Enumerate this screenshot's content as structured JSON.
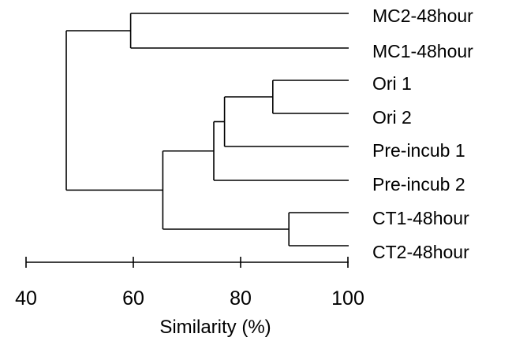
{
  "dendrogram": {
    "leaves": [
      "MC2-48hour",
      "MC1-48hour",
      "Ori 1",
      "Ori 2",
      "Pre-incub 1",
      "Pre-incub 2",
      "CT1-48hour",
      "CT2-48hour"
    ],
    "merges": [
      {
        "children": [
          "MC2-48hour",
          "MC1-48hour"
        ],
        "similarity": 59.5
      },
      {
        "children": [
          "Ori 1",
          "Ori 2"
        ],
        "similarity": 86
      },
      {
        "children": [
          "Ori 1 + Ori 2",
          "Pre-incub 1"
        ],
        "similarity": 77
      },
      {
        "children": [
          "Ori + Pre-incub 1",
          "Pre-incub 2"
        ],
        "similarity": 75
      },
      {
        "children": [
          "CT1-48hour",
          "CT2-48hour"
        ],
        "similarity": 89
      },
      {
        "children": [
          "Ori/Pre-incub cluster",
          "CT cluster"
        ],
        "similarity": 65.5
      },
      {
        "children": [
          "MC cluster",
          "rest"
        ],
        "similarity": 47.5
      }
    ]
  },
  "axis": {
    "title": "Similarity (%)",
    "min": 40,
    "max": 100,
    "ticks": [
      "40",
      "60",
      "80",
      "100"
    ]
  }
}
